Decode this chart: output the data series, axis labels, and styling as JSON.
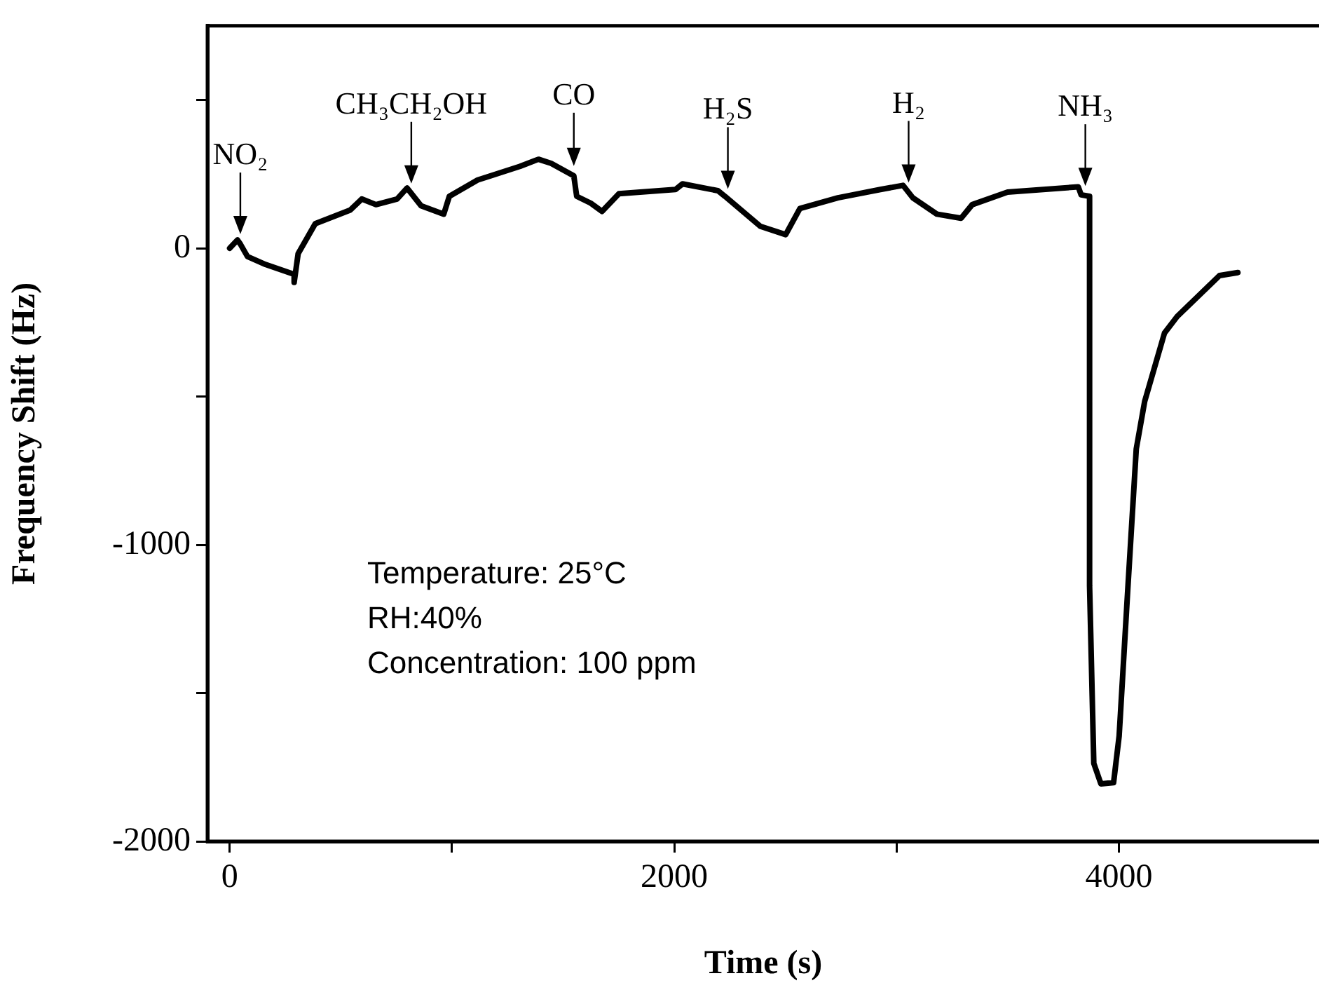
{
  "chart_data": {
    "type": "line",
    "xlabel": "Time (s)",
    "ylabel": "Frequency Shift (Hz)",
    "xlim": [
      -100,
      4900
    ],
    "ylim": [
      -2000,
      750
    ],
    "xticks": [
      0,
      {
        "value": 1000,
        "label": null
      },
      2000,
      {
        "value": 3000,
        "label": null
      },
      4000
    ],
    "yticks": [
      -2000,
      {
        "value": -1500,
        "label": null
      },
      -1000,
      {
        "value": -500,
        "label": null
      },
      0,
      {
        "value": 500,
        "label": null
      }
    ],
    "grid": false,
    "legend": false,
    "marker": "none",
    "line_style": "solid",
    "series": [
      {
        "color": "#000000",
        "x": [
          0,
          35,
          48,
          80,
          162,
          290,
          290,
          308,
          385,
          543,
          594,
          658,
          753,
          798,
          861,
          963,
          988,
          1115,
          1306,
          1389,
          1446,
          1548,
          1561,
          1624,
          1675,
          1751,
          2005,
          2037,
          2196,
          2228,
          2387,
          2501,
          2565,
          2736,
          2927,
          3029,
          3073,
          3181,
          3290,
          3340,
          3499,
          3817,
          3830,
          3868,
          3868,
          3887,
          3919,
          3976,
          4001,
          4039,
          4078,
          4116,
          4205,
          4262,
          4453,
          4535
        ],
        "values": [
          0,
          28,
          14,
          -28,
          -55,
          -88,
          -115,
          -18,
          83,
          129,
          166,
          147,
          166,
          203,
          143,
          115,
          175,
          230,
          276,
          300,
          286,
          244,
          175,
          152,
          124,
          184,
          198,
          217,
          194,
          175,
          74,
          46,
          134,
          170,
          198,
          212,
          170,
          115,
          101,
          147,
          189,
          207,
          180,
          175,
          -1138,
          -1737,
          -1806,
          -1802,
          -1645,
          -1161,
          -677,
          -516,
          -286,
          -230,
          -92,
          -82
        ]
      }
    ],
    "annotations": [
      {
        "text": "NO₂",
        "x": 48,
        "y": 14
      },
      {
        "text": "CH₃CH₂OH",
        "x": 817,
        "y": 185
      },
      {
        "text": "CO",
        "x": 1548,
        "y": 244
      },
      {
        "text": "H₂S",
        "x": 2241,
        "y": 167
      },
      {
        "text": "H₂",
        "x": 3054,
        "y": 188
      },
      {
        "text": "NH₃",
        "x": 3849,
        "y": 177
      },
      "Temperature: 25°C",
      "RH:40%",
      "Concentration: 100 ppm"
    ]
  }
}
